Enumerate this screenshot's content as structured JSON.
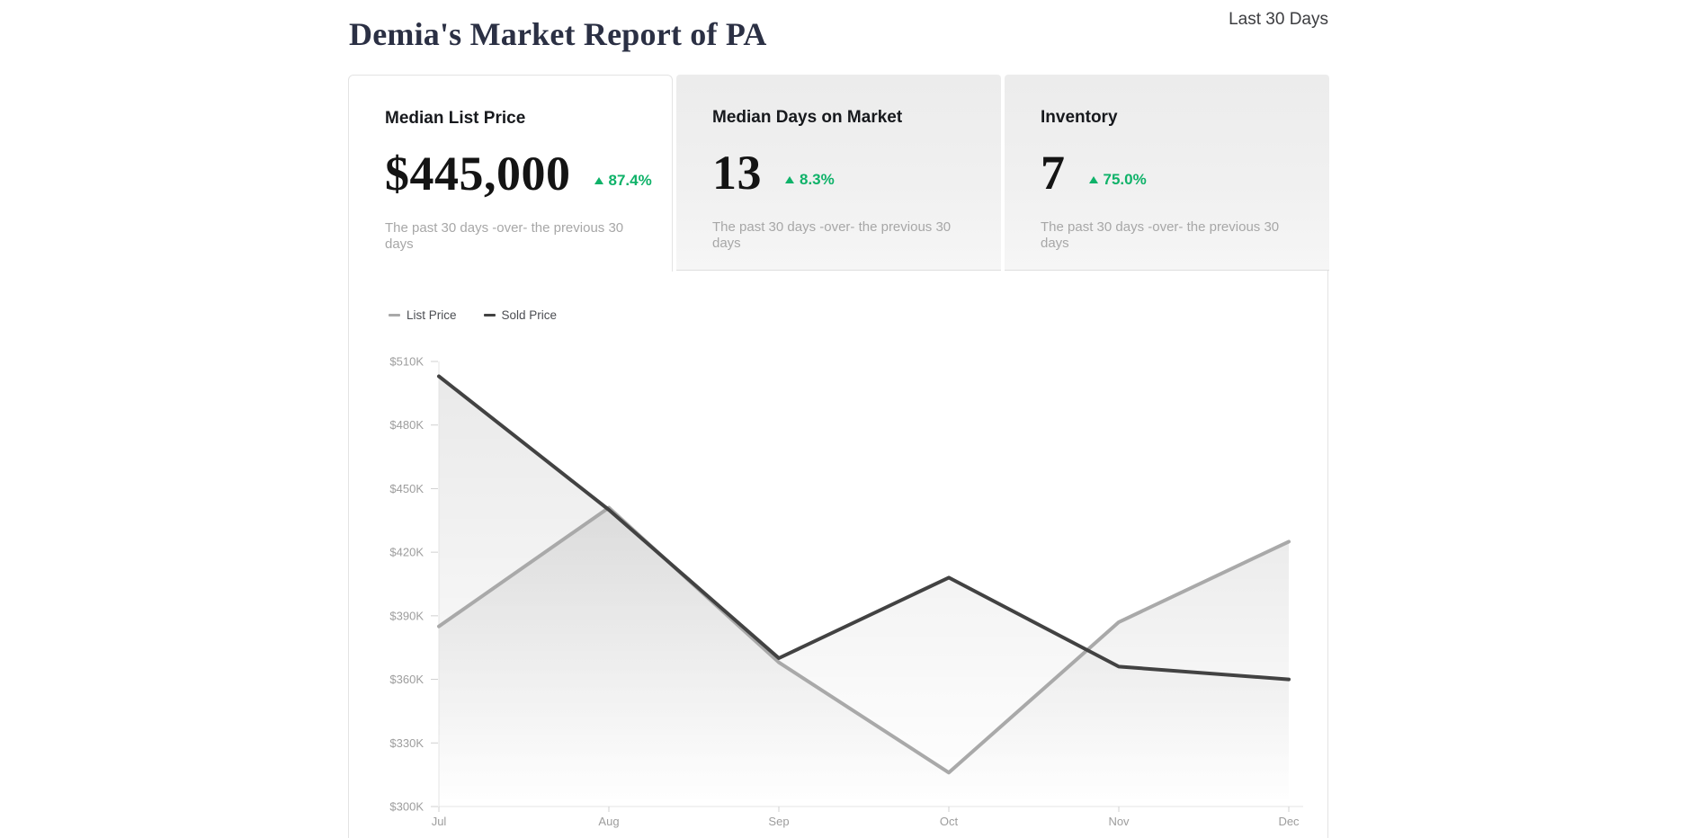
{
  "header": {
    "title": "Demia's Market Report of PA",
    "period_label": "Last 30 Days"
  },
  "colors": {
    "accent_green": "#0fb269",
    "title_navy": "#2b3044",
    "list_line": "#a9a9a9",
    "sold_line": "#424242"
  },
  "tabs": [
    {
      "title": "Median List Price",
      "value": "$445,000",
      "change": "87.4%",
      "direction": "up",
      "subtitle": "The past 30 days -over- the previous 30 days",
      "active": true
    },
    {
      "title": "Median Days on Market",
      "value": "13",
      "change": "8.3%",
      "direction": "up",
      "subtitle": "The past 30 days -over- the previous 30 days",
      "active": false
    },
    {
      "title": "Inventory",
      "value": "7",
      "change": "75.0%",
      "direction": "up",
      "subtitle": "The past 30 days -over- the previous 30 days",
      "active": false
    }
  ],
  "chart_data": {
    "type": "area",
    "title": "",
    "x_labels": [
      "Jul",
      "Aug",
      "Sep",
      "Oct",
      "Nov",
      "Dec"
    ],
    "y_unit": "USD thousands",
    "ylim": [
      300,
      510
    ],
    "y_ticks": [
      {
        "value": 510,
        "label": "$510K"
      },
      {
        "value": 480,
        "label": "$480K"
      },
      {
        "value": 450,
        "label": "$450K"
      },
      {
        "value": 420,
        "label": "$420K"
      },
      {
        "value": 390,
        "label": "$390K"
      },
      {
        "value": 360,
        "label": "$360K"
      },
      {
        "value": 330,
        "label": "$330K"
      },
      {
        "value": 300,
        "label": "$300K"
      }
    ],
    "grid": false,
    "legend_position": "top-left",
    "series": [
      {
        "name": "List Price",
        "color": "#a9a9a9",
        "values_k": [
          385,
          441,
          368,
          316,
          387,
          425
        ]
      },
      {
        "name": "Sold Price",
        "color": "#424242",
        "values_k": [
          503,
          440,
          370,
          408,
          366,
          360
        ]
      }
    ]
  }
}
